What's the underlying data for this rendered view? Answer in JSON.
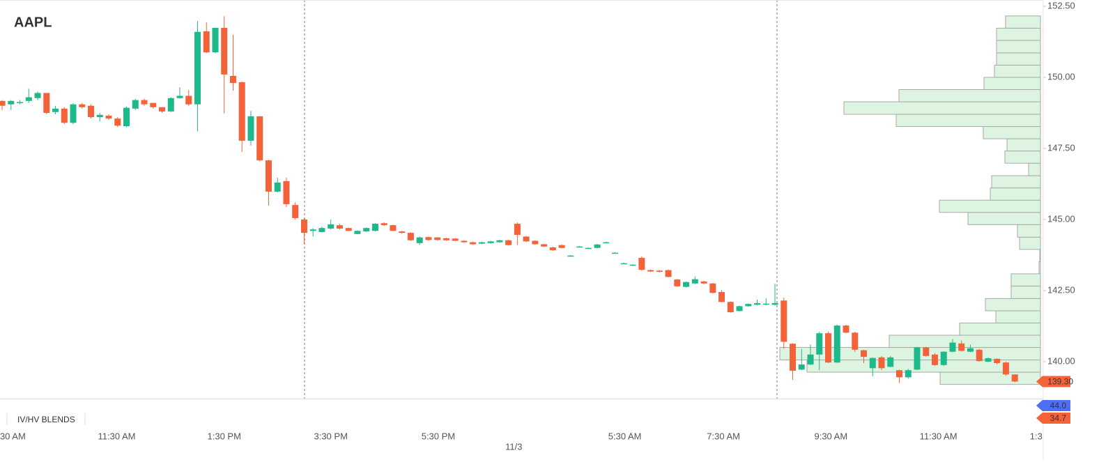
{
  "chart_data": {
    "type": "candlestick",
    "title": "AAPL",
    "open": [
      149.17,
      149.05,
      149.1,
      149.17,
      149.27,
      149.45,
      148.78,
      148.9,
      148.4,
      149.05,
      149.0,
      148.6,
      148.65,
      148.55,
      148.28,
      148.9,
      149.2,
      149.1,
      148.95,
      148.8,
      149.27,
      149.35,
      149.05,
      151.62,
      150.88,
      151.74,
      150.05,
      149.83,
      147.77,
      148.63,
      147.08,
      145.98,
      146.35,
      145.51,
      145.0,
      144.6,
      144.56,
      144.68,
      144.8,
      144.7,
      144.49,
      144.58,
      144.6,
      144.87,
      144.8,
      144.58,
      144.53,
      144.17,
      144.38,
      144.37,
      144.34,
      144.33,
      144.25,
      144.2,
      144.15,
      144.17,
      144.2,
      144.27,
      144.85,
      144.4,
      144.25,
      144.13,
      144.02,
      144.1,
      143.72,
      144.04,
      143.99,
      144.0,
      144.19,
      143.82,
      143.45,
      143.4,
      143.65,
      143.22,
      143.2,
      143.22,
      142.89,
      142.63,
      142.75,
      142.82,
      142.75,
      142.45,
      142.1,
      141.78,
      141.95,
      142.0,
      142.03,
      142.0,
      142.15,
      140.63,
      139.72,
      139.9,
      140.25,
      141.0,
      139.97,
      141.27,
      141.02,
      140.4,
      139.77,
      140.15,
      139.82,
      139.7,
      139.45,
      139.72,
      140.5,
      140.25,
      139.88,
      140.35,
      140.64,
      140.35,
      140.42,
      140.0,
      140.1,
      139.97,
      139.55
    ],
    "high": [
      149.2,
      149.2,
      149.2,
      149.6,
      149.5,
      149.45,
      149.0,
      148.95,
      149.1,
      149.1,
      149.05,
      148.75,
      148.7,
      148.6,
      148.97,
      149.25,
      149.25,
      149.1,
      148.95,
      149.3,
      149.65,
      149.55,
      151.98,
      151.93,
      151.75,
      152.15,
      151.5,
      149.85,
      148.82,
      148.63,
      147.1,
      146.47,
      146.47,
      145.6,
      145.05,
      144.7,
      144.75,
      145.0,
      144.85,
      144.72,
      144.62,
      144.72,
      144.87,
      144.9,
      144.82,
      144.6,
      144.55,
      144.4,
      144.4,
      144.38,
      144.36,
      144.35,
      144.27,
      144.22,
      144.22,
      144.25,
      144.29,
      144.29,
      144.9,
      144.42,
      144.27,
      144.15,
      144.04,
      144.12,
      143.75,
      144.07,
      144.02,
      144.14,
      144.22,
      143.85,
      143.48,
      143.43,
      143.7,
      143.24,
      143.22,
      143.24,
      142.91,
      142.82,
      143.0,
      142.84,
      142.77,
      142.52,
      142.12,
      141.97,
      142.05,
      142.18,
      142.23,
      142.74,
      142.25,
      140.65,
      140.45,
      140.6,
      141.05,
      141.05,
      141.3,
      141.3,
      141.05,
      140.42,
      140.15,
      140.2,
      140.2,
      139.72,
      139.75,
      140.52,
      140.52,
      140.3,
      140.37,
      140.8,
      140.75,
      140.6,
      140.45,
      140.15,
      140.12,
      140.0,
      139.55
    ],
    "low": [
      148.85,
      148.85,
      149.05,
      149.1,
      149.2,
      148.7,
      148.7,
      148.35,
      148.35,
      148.9,
      148.55,
      148.45,
      148.5,
      148.25,
      148.25,
      148.85,
      149.0,
      148.9,
      148.75,
      148.78,
      149.25,
      149.0,
      148.1,
      150.85,
      150.85,
      148.73,
      149.53,
      147.38,
      147.6,
      147.05,
      145.49,
      145.95,
      145.44,
      145.0,
      144.14,
      144.4,
      144.55,
      144.65,
      144.65,
      144.58,
      144.48,
      144.56,
      144.58,
      144.78,
      144.58,
      144.5,
      144.25,
      144.1,
      144.25,
      144.26,
      144.25,
      144.23,
      144.18,
      144.11,
      144.13,
      144.15,
      144.18,
      144.08,
      144.1,
      144.21,
      144.11,
      144.03,
      143.9,
      143.98,
      143.7,
      144.02,
      143.97,
      143.98,
      144.17,
      143.8,
      143.43,
      143.38,
      143.2,
      143.15,
      143.14,
      142.96,
      142.63,
      142.61,
      142.73,
      142.73,
      142.4,
      142.08,
      141.72,
      141.76,
      141.93,
      141.98,
      141.98,
      141.98,
      140.46,
      139.36,
      139.7,
      139.88,
      139.7,
      139.95,
      139.95,
      141.0,
      140.35,
      139.95,
      139.48,
      139.7,
      139.8,
      139.25,
      139.4,
      139.7,
      140.18,
      139.85,
      139.85,
      140.33,
      140.35,
      140.33,
      140.0,
      139.98,
      139.9,
      139.5,
      139.28
    ],
    "close": [
      149.0,
      149.17,
      149.13,
      149.3,
      149.45,
      148.75,
      148.9,
      148.4,
      149.05,
      148.95,
      148.6,
      148.68,
      148.55,
      148.3,
      148.93,
      149.2,
      149.05,
      148.95,
      148.8,
      149.27,
      149.35,
      149.05,
      151.6,
      150.88,
      151.74,
      150.1,
      149.8,
      147.77,
      148.63,
      147.08,
      145.98,
      146.3,
      145.54,
      145.05,
      144.53,
      144.65,
      144.7,
      144.83,
      144.68,
      144.6,
      144.6,
      144.7,
      144.85,
      144.8,
      144.6,
      144.53,
      144.27,
      144.37,
      144.28,
      144.28,
      144.27,
      144.25,
      144.2,
      144.13,
      144.2,
      144.23,
      144.27,
      144.1,
      144.46,
      144.23,
      144.13,
      144.05,
      143.92,
      144.0,
      143.73,
      144.05,
      144.0,
      144.12,
      144.2,
      143.83,
      143.46,
      143.41,
      143.23,
      143.17,
      143.16,
      142.98,
      142.65,
      142.8,
      142.9,
      142.75,
      142.42,
      142.1,
      141.74,
      141.95,
      142.03,
      142.06,
      142.04,
      142.06,
      140.7,
      139.68,
      139.9,
      140.25,
      141.0,
      139.97,
      141.27,
      141.02,
      140.42,
      140.17,
      140.13,
      139.77,
      140.15,
      139.45,
      139.7,
      140.5,
      140.2,
      139.88,
      140.35,
      140.67,
      140.38,
      140.47,
      140.02,
      140.12,
      139.95,
      139.55,
      139.3
    ],
    "up_color": "#1db98a",
    "down_color": "#f4623a",
    "xlim": [
      -0.24,
      117.2
    ],
    "xticks": [
      {
        "value": 1.2,
        "label": "30 AM"
      },
      {
        "value": 12.9,
        "label": "11:30 AM"
      },
      {
        "value": 25,
        "label": "1:30 PM"
      },
      {
        "value": 37,
        "label": "3:30 PM"
      },
      {
        "value": 49.1,
        "label": "5:30 PM"
      },
      {
        "value": 70.1,
        "label": "5:30 AM"
      },
      {
        "value": 81.2,
        "label": "7:30 AM"
      },
      {
        "value": 93.3,
        "label": "9:30 AM"
      },
      {
        "value": 105.4,
        "label": "11:30 AM"
      },
      {
        "value": 116.4,
        "label": "1:3"
      }
    ],
    "xdates": [
      {
        "value": 57.6,
        "label": "11/3"
      }
    ],
    "ylim": [
      138.7,
      152.72
    ],
    "yticks": [
      {
        "value": 152.5,
        "label": "152.50"
      },
      {
        "value": 150,
        "label": "150.00"
      },
      {
        "value": 147.5,
        "label": "147.50"
      },
      {
        "value": 145,
        "label": "145.00"
      },
      {
        "value": 142.5,
        "label": "142.50"
      },
      {
        "value": 140,
        "label": "140.00"
      }
    ],
    "last_price": {
      "value": 139.3,
      "label": "139.30",
      "color": "#f4623a"
    },
    "volume_profile": {
      "color": "#ddf5e0",
      "bins": [
        139.2,
        139.63,
        140.06,
        140.5,
        140.93,
        141.36,
        141.79,
        142.22,
        142.66,
        143.09,
        143.52,
        143.95,
        144.38,
        144.82,
        145.25,
        145.68,
        146.11,
        146.54,
        146.98,
        147.41,
        147.84,
        148.27,
        148.7,
        149.14,
        149.57,
        150.0,
        150.43,
        150.86,
        151.3,
        151.73,
        152.16
      ],
      "values": [
        144,
        335,
        374,
        217,
        116,
        64,
        79,
        42,
        42,
        2,
        1,
        30,
        33,
        104,
        145,
        72,
        70,
        17,
        51,
        48,
        82,
        207,
        282,
        203,
        81,
        66,
        63,
        63,
        63,
        50
      ]
    },
    "indicator": {
      "title": "IV/HV BLENDS",
      "values": [
        44,
        34.7
      ],
      "value_labels": [
        "44.0",
        "34.7"
      ],
      "colors": [
        "#4d6ef5",
        "#f4623a"
      ]
    }
  }
}
